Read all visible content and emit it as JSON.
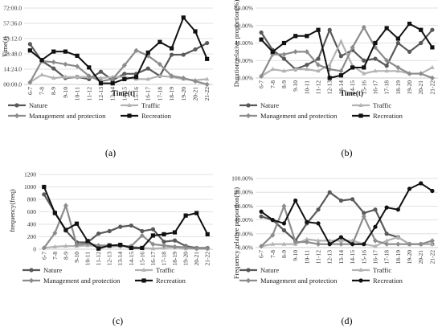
{
  "categories": [
    "6-7",
    "7-8",
    "8-9",
    "9-10",
    "10-11",
    "11-12",
    "12-13",
    "13-14",
    "14-15",
    "15-16",
    "16-17",
    "17-18",
    "18-19",
    "19-20",
    "20-21",
    "21-22"
  ],
  "colors": {
    "Nature": "#595959",
    "Traffic": "#b3b3b3",
    "Management and protection": "#8c8c8c",
    "Recreation": "#111111"
  },
  "chart_data": [
    {
      "type": "line",
      "panel_label": "(a)",
      "title": "",
      "xlabel": "Time(t)",
      "ylabel": "Time(t)",
      "y_ticks": [
        "00:00.0",
        "14:24.0",
        "28:48.0",
        "43:12.0",
        "57:36.0",
        "72:00.0"
      ],
      "ylim": [
        0,
        72
      ],
      "series": [
        {
          "name": "Nature",
          "marker": "circle",
          "values": [
            38,
            22,
            15,
            6,
            7,
            5,
            12,
            4,
            10,
            10,
            15,
            8,
            28,
            28,
            33,
            39
          ]
        },
        {
          "name": "Traffic",
          "marker": "triangle",
          "values": [
            2,
            9,
            6,
            7,
            7,
            7,
            6,
            7,
            7,
            5,
            5,
            8,
            7,
            5,
            4,
            5
          ]
        },
        {
          "name": "Management and protection",
          "marker": "diamond",
          "values": [
            2,
            22,
            21,
            19,
            17,
            8,
            3,
            5,
            18,
            32,
            27,
            19,
            8,
            6,
            3,
            0
          ]
        },
        {
          "name": "Recreation",
          "marker": "square",
          "values": [
            32,
            23,
            31,
            31,
            27,
            16,
            1,
            1,
            5,
            7,
            30,
            40,
            34,
            63,
            50,
            24
          ]
        }
      ]
    },
    {
      "type": "line",
      "panel_label": "(b)",
      "title": "",
      "xlabel": "Time(t)",
      "ylabel": "Duration relative proportion(%)",
      "y_ticks": [
        "0.00%",
        "20.00%",
        "40.00%",
        "60.00%",
        "80.00%"
      ],
      "ylim": [
        0,
        80
      ],
      "series": [
        {
          "name": "Nature",
          "marker": "circle",
          "values": [
            52,
            32,
            22,
            10,
            15,
            22,
            55,
            25,
            32,
            20,
            22,
            14,
            40,
            30,
            40,
            55
          ]
        },
        {
          "name": "Traffic",
          "marker": "triangle",
          "values": [
            2,
            10,
            8,
            10,
            10,
            8,
            15,
            42,
            14,
            5,
            8,
            8,
            8,
            5,
            5,
            12
          ]
        },
        {
          "name": "Management and protection",
          "marker": "diamond",
          "values": [
            2,
            27,
            27,
            30,
            30,
            15,
            10,
            8,
            35,
            58,
            35,
            20,
            12,
            5,
            5,
            0
          ]
        },
        {
          "name": "Recreation",
          "marker": "square",
          "values": [
            44,
            30,
            40,
            48,
            48,
            55,
            0,
            3,
            12,
            12,
            40,
            57,
            45,
            62,
            55,
            35
          ]
        }
      ]
    },
    {
      "type": "line",
      "panel_label": "(c)",
      "title": "",
      "xlabel": "",
      "ylabel": "frequency(freq)",
      "y_ticks": [
        "0",
        "200",
        "400",
        "600",
        "800",
        "1000",
        "1200"
      ],
      "ylim": [
        0,
        1200
      ],
      "series": [
        {
          "name": "Nature",
          "marker": "circle",
          "values": [
            880,
            590,
            300,
            110,
            110,
            250,
            290,
            360,
            380,
            290,
            320,
            120,
            140,
            50,
            20,
            20
          ]
        },
        {
          "name": "Traffic",
          "marker": "triangle",
          "values": [
            20,
            40,
            50,
            50,
            60,
            50,
            40,
            50,
            40,
            20,
            10,
            20,
            30,
            10,
            10,
            10
          ]
        },
        {
          "name": "Management and protection",
          "marker": "diamond",
          "values": [
            20,
            260,
            700,
            70,
            90,
            60,
            60,
            50,
            50,
            220,
            80,
            60,
            40,
            30,
            10,
            10
          ]
        },
        {
          "name": "Recreation",
          "marker": "square",
          "values": [
            1000,
            580,
            310,
            410,
            130,
            10,
            60,
            70,
            20,
            20,
            220,
            240,
            270,
            540,
            580,
            240
          ]
        }
      ]
    },
    {
      "type": "line",
      "panel_label": "(d)",
      "title": "",
      "xlabel": "",
      "ylabel": "Frequency relative proportion(%)",
      "y_ticks": [
        "0.00%",
        "20.00%",
        "40.00%",
        "60.00%",
        "80.00%",
        "100.00%"
      ],
      "ylim": [
        0,
        100
      ],
      "series": [
        {
          "name": "Nature",
          "marker": "circle",
          "values": [
            45,
            40,
            25,
            10,
            35,
            55,
            80,
            68,
            70,
            50,
            55,
            20,
            15,
            5,
            5,
            5
          ]
        },
        {
          "name": "Traffic",
          "marker": "triangle",
          "values": [
            2,
            5,
            5,
            5,
            12,
            10,
            10,
            10,
            10,
            5,
            2,
            10,
            15,
            5,
            5,
            5
          ]
        },
        {
          "name": "Management and protection",
          "marker": "diamond",
          "values": [
            2,
            18,
            60,
            8,
            8,
            5,
            5,
            5,
            5,
            45,
            10,
            5,
            5,
            5,
            5,
            10
          ]
        },
        {
          "name": "Recreation",
          "marker": "circle",
          "values": [
            52,
            40,
            35,
            68,
            37,
            35,
            5,
            15,
            5,
            5,
            30,
            58,
            55,
            85,
            93,
            82
          ]
        }
      ]
    }
  ]
}
